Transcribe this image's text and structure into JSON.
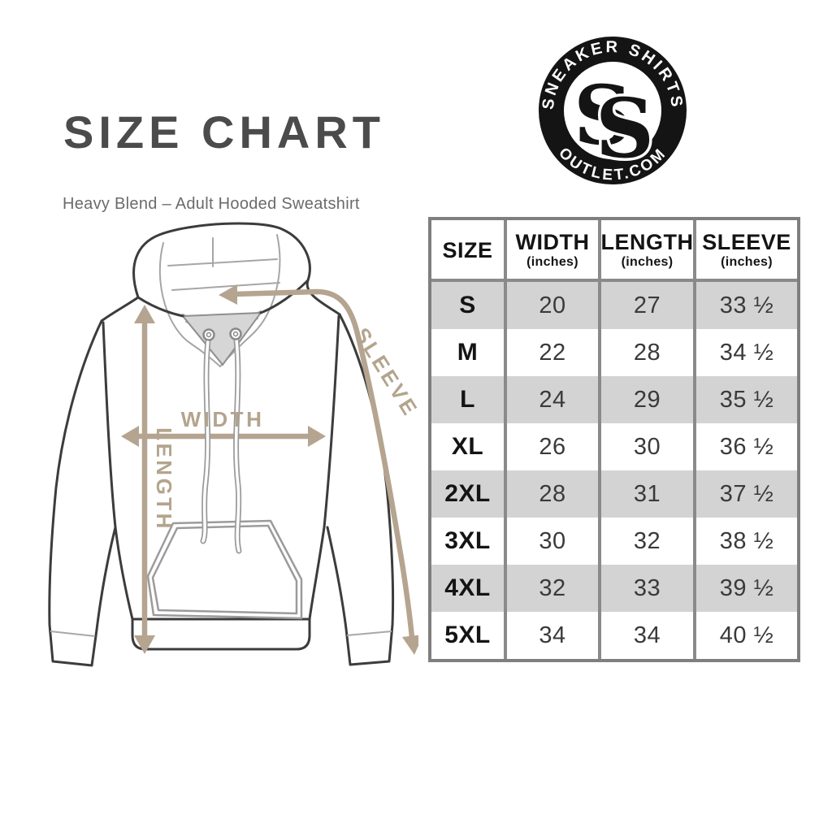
{
  "header": {
    "title": "SIZE CHART",
    "subtitle": "Heavy Blend – Adult Hooded Sweatshirt"
  },
  "logo": {
    "arc_top_text": "SNEAKER SHIRTS",
    "arc_bottom_text": "OUTLET.COM",
    "monogram_letters": [
      "S",
      "S"
    ],
    "badge_color": "#141414"
  },
  "diagram": {
    "subject": "hooded sweatshirt measurement line drawing",
    "width_label": "WIDTH",
    "length_label": "LENGTH",
    "sleeve_label": "SLEEVE",
    "arrow_color": "#b5a48f",
    "outline_color": "#3c3c3c"
  },
  "size_table": {
    "columns": [
      {
        "label": "SIZE",
        "sublabel": ""
      },
      {
        "label": "WIDTH",
        "sublabel": "(inches)"
      },
      {
        "label": "LENGTH",
        "sublabel": "(inches)"
      },
      {
        "label": "SLEEVE",
        "sublabel": "(inches)"
      }
    ],
    "rows": [
      {
        "size": "S",
        "width": "20",
        "length": "27",
        "sleeve": "33 ½"
      },
      {
        "size": "M",
        "width": "22",
        "length": "28",
        "sleeve": "34 ½"
      },
      {
        "size": "L",
        "width": "24",
        "length": "29",
        "sleeve": "35 ½"
      },
      {
        "size": "XL",
        "width": "26",
        "length": "30",
        "sleeve": "36 ½"
      },
      {
        "size": "2XL",
        "width": "28",
        "length": "31",
        "sleeve": "37 ½"
      },
      {
        "size": "3XL",
        "width": "30",
        "length": "32",
        "sleeve": "38 ½"
      },
      {
        "size": "4XL",
        "width": "32",
        "length": "33",
        "sleeve": "39 ½"
      },
      {
        "size": "5XL",
        "width": "34",
        "length": "34",
        "sleeve": "40 ½"
      }
    ],
    "stripe_color": "#d3d3d3",
    "border_color": "#8a8a8a"
  },
  "chart_data": {
    "type": "table",
    "title": "SIZE CHART",
    "subtitle": "Heavy Blend – Adult Hooded Sweatshirt",
    "columns": [
      "SIZE",
      "WIDTH (inches)",
      "LENGTH (inches)",
      "SLEEVE (inches)"
    ],
    "rows": [
      [
        "S",
        20,
        27,
        33.5
      ],
      [
        "M",
        22,
        28,
        34.5
      ],
      [
        "L",
        24,
        29,
        35.5
      ],
      [
        "XL",
        26,
        30,
        36.5
      ],
      [
        "2XL",
        28,
        31,
        37.5
      ],
      [
        "3XL",
        30,
        32,
        38.5
      ],
      [
        "4XL",
        32,
        33,
        39.5
      ],
      [
        "5XL",
        34,
        34,
        40.5
      ]
    ]
  }
}
